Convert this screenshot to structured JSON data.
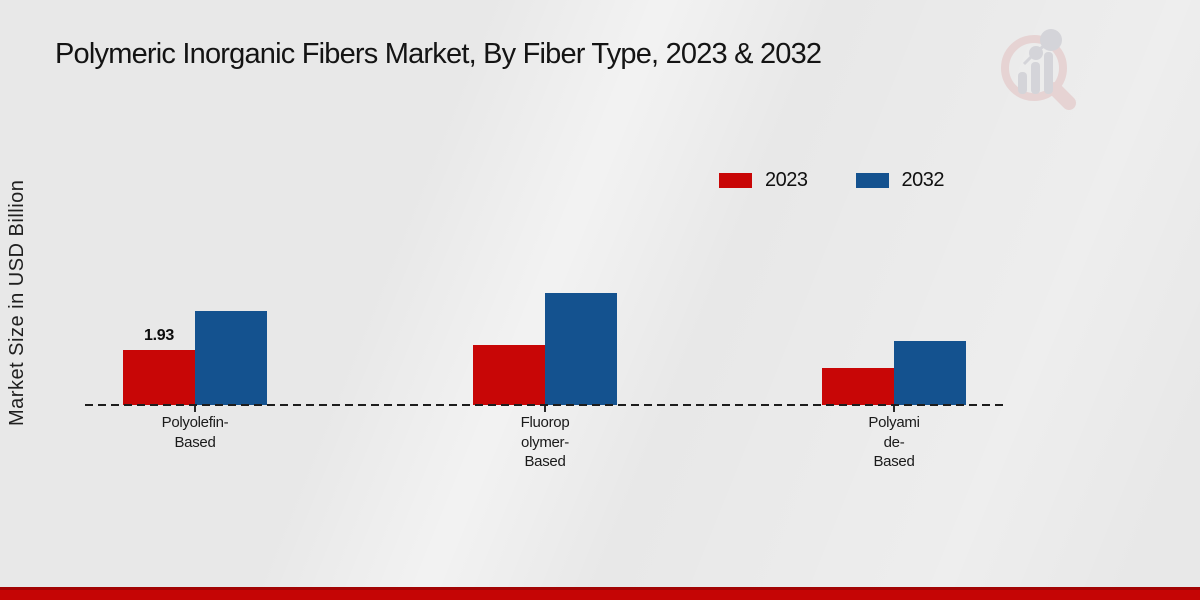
{
  "header": {
    "title": "Polymeric Inorganic Fibers Market, By Fiber Type, 2023 & 2032"
  },
  "axes": {
    "ylabel": "Market Size in USD Billion"
  },
  "chart_data": {
    "type": "bar",
    "title": "Polymeric Inorganic Fibers Market, By Fiber Type, 2023 & 2032",
    "xlabel": "",
    "ylabel": "Market Size in USD Billion",
    "categories": [
      "Polyolefin-Based",
      "Fluoropolymer-Based",
      "Polyamide-Based"
    ],
    "category_label_lines": [
      [
        "Polyolefin-",
        "Based"
      ],
      [
        "Fluorop",
        "olymer-",
        "Based"
      ],
      [
        "Polyami",
        "de-",
        "Based"
      ]
    ],
    "series": [
      {
        "name": "2023",
        "color": "#c80606",
        "values": [
          1.93,
          2.11,
          1.3
        ]
      },
      {
        "name": "2032",
        "color": "#14528f",
        "values": [
          3.3,
          3.93,
          2.25
        ]
      }
    ],
    "annotations": [
      {
        "series": "2023",
        "category_index": 0,
        "text": "1.93"
      }
    ],
    "ylim": [
      0,
      4.5
    ],
    "grid": false,
    "axis_style": "dashed-baseline-only",
    "legend_position": "top-right"
  },
  "colors": {
    "series_2023": "#c80606",
    "series_2032": "#14528f",
    "footer_bar": "#c50505",
    "background": "#e8e8e8",
    "baseline": "#1d1d1d"
  },
  "icons": {
    "watermark": "magnifier-bar-chart-logo"
  }
}
